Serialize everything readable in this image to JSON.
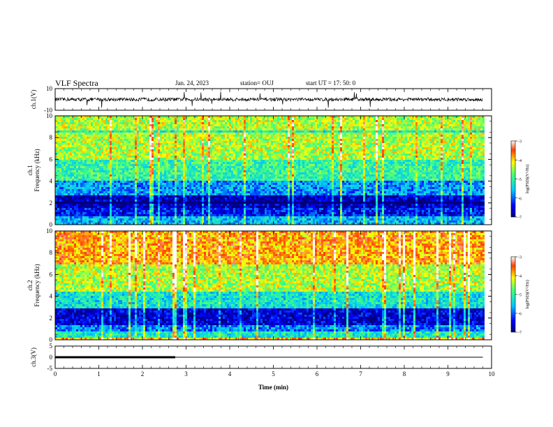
{
  "header": {
    "title": "VLF Spectra",
    "date": "Jan. 24, 2023",
    "station": "station= OUJ",
    "start": "start  UT =   17: 50: 0"
  },
  "chart_data": [
    {
      "type": "line",
      "panel": "ch1-waveform",
      "ylabel": "ch.1(V)",
      "ylim": [
        -10,
        10
      ],
      "yticks": [
        "10",
        "-10"
      ],
      "xlim": [
        0,
        10
      ],
      "series": [
        {
          "description_level": 0,
          "values_min": -3,
          "values_max": 3
        }
      ]
    },
    {
      "type": "heatmap",
      "panel": "ch1-spectrogram",
      "ylabel": "ch.1\nFrequency (kHz)",
      "ylim": [
        0,
        10
      ],
      "yticks": [
        "0",
        "2",
        "4",
        "6",
        "8",
        "10"
      ],
      "xlim": [
        0,
        10
      ],
      "data_end_min": 9.8,
      "colorbar": {
        "label": "log(PSD)(V²/Hz)",
        "range": [
          -7,
          -3
        ],
        "ticks": [
          "-3",
          "-4",
          "-5",
          "-6",
          "-7"
        ]
      },
      "bands": [
        {
          "f_khz": [
            0,
            0.8
          ],
          "level": -5.6
        },
        {
          "f_khz": [
            0.8,
            1.6
          ],
          "level": -6.4
        },
        {
          "f_khz": [
            1.6,
            2.6
          ],
          "level": -6.7
        },
        {
          "f_khz": [
            2.6,
            4.0
          ],
          "level": -5.8
        },
        {
          "f_khz": [
            4.0,
            6.0
          ],
          "level": -5.0
        },
        {
          "f_khz": [
            6.0,
            10.0
          ],
          "level": -4.4
        }
      ]
    },
    {
      "type": "heatmap",
      "panel": "ch2-spectrogram",
      "ylabel": "ch.2\nFrequency (kHz)",
      "ylim": [
        0,
        10
      ],
      "yticks": [
        "0",
        "2",
        "4",
        "6",
        "8",
        "10"
      ],
      "xlim": [
        0,
        10
      ],
      "data_end_min": 9.8,
      "colorbar": {
        "label": "log(PSD)(V²/Hz)",
        "range": [
          -7,
          -3
        ],
        "ticks": [
          "-3",
          "-4",
          "-5",
          "-6",
          "-7"
        ]
      },
      "bands": [
        {
          "f_khz": [
            0,
            0.8
          ],
          "level": -5.2
        },
        {
          "f_khz": [
            0.8,
            1.4
          ],
          "level": -5.9
        },
        {
          "f_khz": [
            1.4,
            2.8
          ],
          "level": -6.6
        },
        {
          "f_khz": [
            2.8,
            4.4
          ],
          "level": -5.3
        },
        {
          "f_khz": [
            4.4,
            7.0
          ],
          "level": -4.4
        },
        {
          "f_khz": [
            7.0,
            10.0
          ],
          "level": -3.8
        }
      ]
    },
    {
      "type": "line",
      "panel": "ch3-waveform",
      "ylabel": "ch.3(V)",
      "ylim": [
        -5,
        5
      ],
      "yticks": [
        "5",
        "0",
        "-5"
      ],
      "xlim": [
        0,
        10
      ],
      "series": [
        {
          "segment": "thick",
          "x": [
            0,
            2.75
          ],
          "y": [
            0,
            0
          ]
        },
        {
          "segment": "thin",
          "x": [
            2.75,
            9.8
          ],
          "y": [
            0,
            0
          ]
        }
      ]
    }
  ],
  "xaxis": {
    "label": "Time (min)",
    "ticks": [
      "0",
      "1",
      "2",
      "3",
      "4",
      "5",
      "6",
      "7",
      "8",
      "9",
      "10"
    ]
  }
}
